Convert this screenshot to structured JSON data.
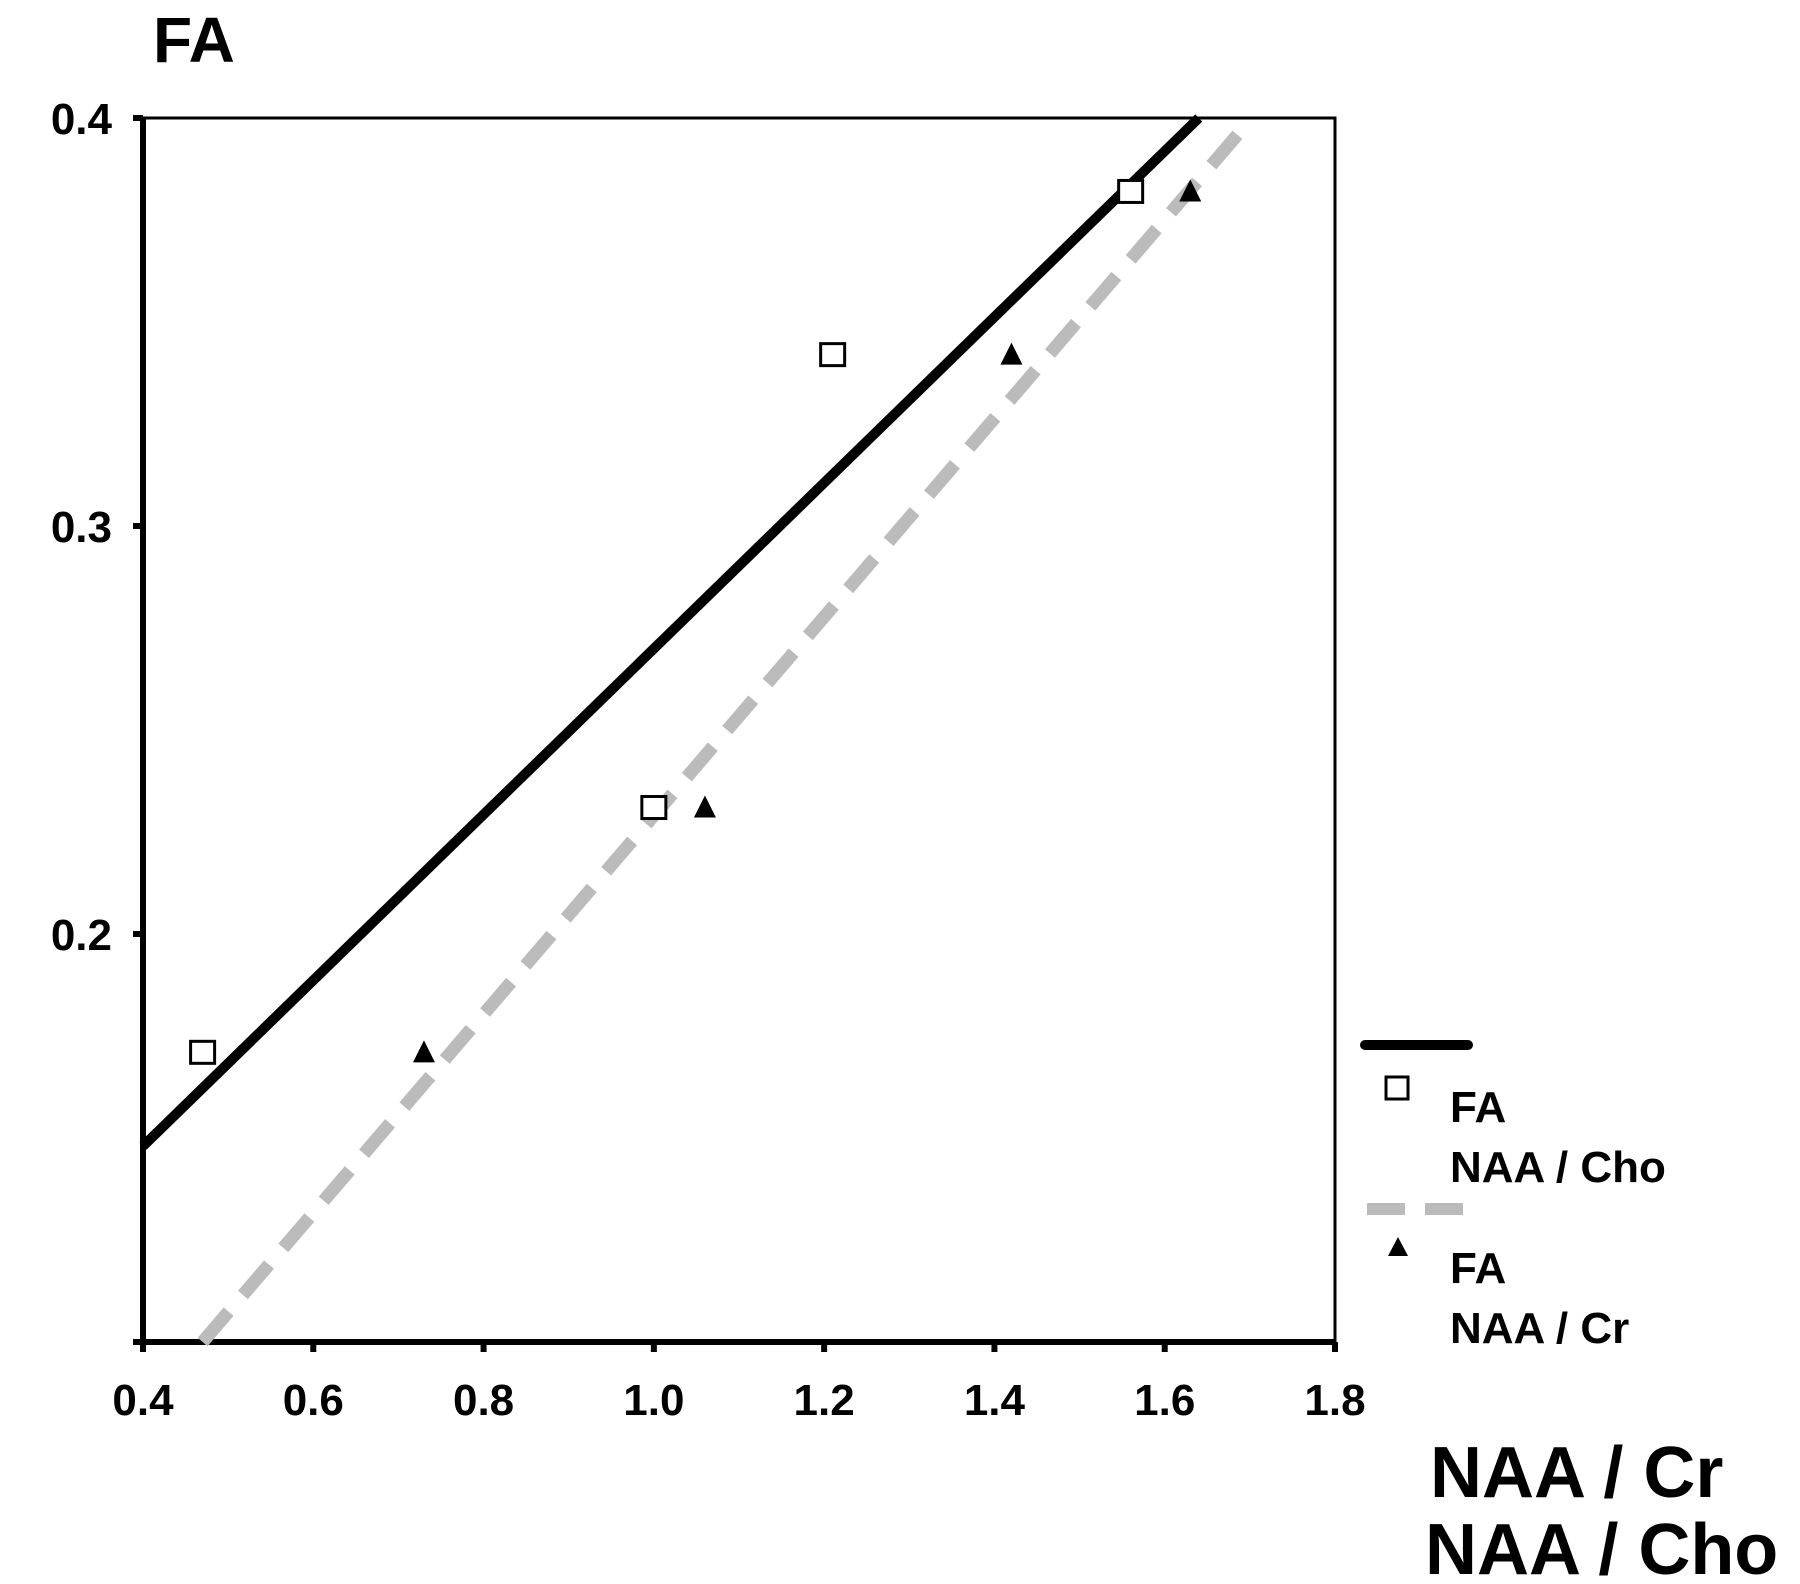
{
  "chart_data": {
    "type": "scatter",
    "ylabel": "FA",
    "xlabel_lines": [
      "NAA / Cr",
      "NAA / Cho"
    ],
    "xlim": [
      0.4,
      1.8
    ],
    "ylim": [
      0.1,
      0.4
    ],
    "x_ticks": [
      "0.4",
      "0.6",
      "0.8",
      "1.0",
      "1.2",
      "1.4",
      "1.6",
      "1.8"
    ],
    "y_ticks": [
      "0.4",
      "0.3",
      "0.2"
    ],
    "grid": false,
    "legend_position": "right",
    "series": [
      {
        "legend_lines": [
          "FA",
          "NAA / Cho"
        ],
        "marker": "open-square",
        "line_style": "solid",
        "line_color": "#000000",
        "points": [
          {
            "x": 0.47,
            "y": 0.171
          },
          {
            "x": 1.0,
            "y": 0.231
          },
          {
            "x": 1.21,
            "y": 0.342
          },
          {
            "x": 1.56,
            "y": 0.382
          }
        ],
        "fit": [
          {
            "x": 0.4,
            "y": 0.148
          },
          {
            "x": 1.64,
            "y": 0.4
          }
        ]
      },
      {
        "legend_lines": [
          "FA",
          "NAA / Cr"
        ],
        "marker": "filled-triangle",
        "line_style": "dashed",
        "line_color": "#bbbbbb",
        "points": [
          {
            "x": 0.73,
            "y": 0.171
          },
          {
            "x": 1.06,
            "y": 0.231
          },
          {
            "x": 1.42,
            "y": 0.342
          },
          {
            "x": 1.63,
            "y": 0.382
          }
        ],
        "fit": [
          {
            "x": 0.47,
            "y": 0.1
          },
          {
            "x": 1.69,
            "y": 0.397
          }
        ]
      }
    ]
  }
}
